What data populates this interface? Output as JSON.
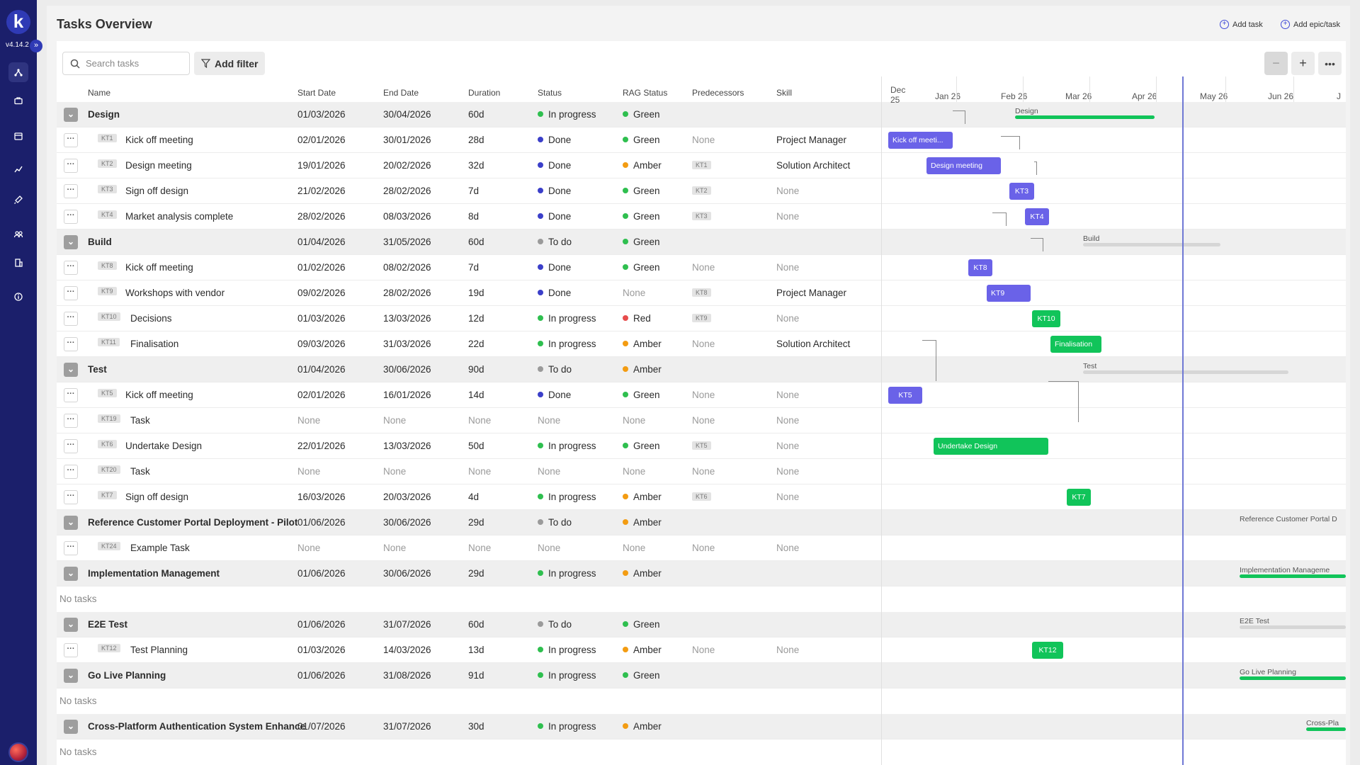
{
  "app": {
    "logo_letter": "k",
    "version": "v4.14.2",
    "expand_glyph": "»"
  },
  "page": {
    "title": "Tasks Overview",
    "add_task": "Add task",
    "add_epic": "Add epic/task",
    "search_placeholder": "Search tasks",
    "add_filter": "Add filter"
  },
  "columns": {
    "name": "Name",
    "start": "Start Date",
    "end": "End Date",
    "duration": "Duration",
    "status": "Status",
    "rag": "RAG Status",
    "pred": "Predecessors",
    "skill": "Skill"
  },
  "months": [
    {
      "label": "Dec 25",
      "x": 0
    },
    {
      "label": "Jan 26"
    },
    {
      "label": "Feb 26"
    },
    {
      "label": "Mar 26"
    },
    {
      "label": "Apr 26"
    },
    {
      "label": "May 26"
    },
    {
      "label": "Jun 26"
    },
    {
      "label": "J"
    }
  ],
  "rows": [
    {
      "type": "group",
      "name": "Design",
      "start": "01/03/2026",
      "end": "30/04/2026",
      "dur": "60d",
      "status": "In progress",
      "rag": "Green"
    },
    {
      "type": "task",
      "id": "KT1",
      "name": "Kick off meeting",
      "start": "02/01/2026",
      "end": "30/01/2026",
      "dur": "28d",
      "status": "Done",
      "rag": "Green",
      "pred": "None",
      "skill": "Project Manager"
    },
    {
      "type": "task",
      "id": "KT2",
      "name": "Design meeting",
      "start": "19/01/2026",
      "end": "20/02/2026",
      "dur": "32d",
      "status": "Done",
      "rag": "Amber",
      "pred": "KT1",
      "skill": "Solution Architect"
    },
    {
      "type": "task",
      "id": "KT3",
      "name": "Sign off design",
      "start": "21/02/2026",
      "end": "28/02/2026",
      "dur": "7d",
      "status": "Done",
      "rag": "Green",
      "pred": "KT2",
      "skill": "None"
    },
    {
      "type": "task",
      "id": "KT4",
      "name": "Market analysis complete",
      "start": "28/02/2026",
      "end": "08/03/2026",
      "dur": "8d",
      "status": "Done",
      "rag": "Green",
      "pred": "KT3",
      "skill": "None"
    },
    {
      "type": "group",
      "name": "Build",
      "start": "01/04/2026",
      "end": "31/05/2026",
      "dur": "60d",
      "status": "To do",
      "rag": "Green"
    },
    {
      "type": "task",
      "id": "KT8",
      "name": "Kick off meeting",
      "start": "01/02/2026",
      "end": "08/02/2026",
      "dur": "7d",
      "status": "Done",
      "rag": "Green",
      "pred": "None",
      "skill": "None"
    },
    {
      "type": "task",
      "id": "KT9",
      "name": "Workshops with vendor",
      "start": "09/02/2026",
      "end": "28/02/2026",
      "dur": "19d",
      "status": "Done",
      "rag": "None",
      "pred": "KT8",
      "skill": "Project Manager"
    },
    {
      "type": "task",
      "id": "KT10",
      "name": "Decisions",
      "start": "01/03/2026",
      "end": "13/03/2026",
      "dur": "12d",
      "status": "In progress",
      "rag": "Red",
      "pred": "KT9",
      "skill": "None"
    },
    {
      "type": "task",
      "id": "KT11",
      "name": "Finalisation",
      "start": "09/03/2026",
      "end": "31/03/2026",
      "dur": "22d",
      "status": "In progress",
      "rag": "Amber",
      "pred": "None",
      "skill": "Solution Architect"
    },
    {
      "type": "group",
      "name": "Test",
      "start": "01/04/2026",
      "end": "30/06/2026",
      "dur": "90d",
      "status": "To do",
      "rag": "Amber"
    },
    {
      "type": "task",
      "id": "KT5",
      "name": "Kick off meeting",
      "start": "02/01/2026",
      "end": "16/01/2026",
      "dur": "14d",
      "status": "Done",
      "rag": "Green",
      "pred": "None",
      "skill": "None"
    },
    {
      "type": "task",
      "id": "KT19",
      "name": "Task",
      "start": "None",
      "end": "None",
      "dur": "None",
      "status": "None",
      "rag": "None",
      "pred": "None",
      "skill": "None"
    },
    {
      "type": "task",
      "id": "KT6",
      "name": "Undertake Design",
      "start": "22/01/2026",
      "end": "13/03/2026",
      "dur": "50d",
      "status": "In progress",
      "rag": "Green",
      "pred": "KT5",
      "skill": "None"
    },
    {
      "type": "task",
      "id": "KT20",
      "name": "Task",
      "start": "None",
      "end": "None",
      "dur": "None",
      "status": "None",
      "rag": "None",
      "pred": "None",
      "skill": "None"
    },
    {
      "type": "task",
      "id": "KT7",
      "name": "Sign off design",
      "start": "16/03/2026",
      "end": "20/03/2026",
      "dur": "4d",
      "status": "In progress",
      "rag": "Amber",
      "pred": "KT6",
      "skill": "None"
    },
    {
      "type": "group",
      "name": "Reference Customer Portal Deployment - Pilot",
      "start": "01/06/2026",
      "end": "30/06/2026",
      "dur": "29d",
      "status": "To do",
      "rag": "Amber"
    },
    {
      "type": "task",
      "id": "KT24",
      "name": "Example Task",
      "start": "None",
      "end": "None",
      "dur": "None",
      "status": "None",
      "rag": "None",
      "pred": "None",
      "skill": "None"
    },
    {
      "type": "group",
      "name": "Implementation Management",
      "start": "01/06/2026",
      "end": "30/06/2026",
      "dur": "29d",
      "status": "In progress",
      "rag": "Amber"
    },
    {
      "type": "empty",
      "text": "No tasks"
    },
    {
      "type": "group",
      "name": "E2E Test",
      "start": "01/06/2026",
      "end": "31/07/2026",
      "dur": "60d",
      "status": "To do",
      "rag": "Green"
    },
    {
      "type": "task",
      "id": "KT12",
      "name": "Test Planning",
      "start": "01/03/2026",
      "end": "14/03/2026",
      "dur": "13d",
      "status": "In progress",
      "rag": "Amber",
      "pred": "None",
      "skill": "None"
    },
    {
      "type": "group",
      "name": "Go Live Planning",
      "start": "01/06/2026",
      "end": "31/08/2026",
      "dur": "91d",
      "status": "In progress",
      "rag": "Green"
    },
    {
      "type": "empty",
      "text": "No tasks"
    },
    {
      "type": "group",
      "name": "Cross-Platform Authentication System Enhance",
      "start": "01/07/2026",
      "end": "31/07/2026",
      "dur": "30d",
      "status": "In progress",
      "rag": "Amber"
    },
    {
      "type": "empty",
      "text": "No tasks"
    }
  ],
  "gantt_bars": [
    {
      "label": "Design",
      "kind": "group",
      "color": "#11c45a"
    },
    {
      "label": "Kick off meeti...",
      "kind": "done"
    },
    {
      "label": "Design meeting",
      "kind": "done"
    },
    {
      "label": "KT3",
      "kind": "done"
    },
    {
      "label": "KT4",
      "kind": "done"
    },
    {
      "label": "Build",
      "kind": "group",
      "color": "#d6d6d6"
    },
    {
      "label": "KT8",
      "kind": "done"
    },
    {
      "label": "KT9",
      "kind": "done"
    },
    {
      "label": "KT10",
      "kind": "prog"
    },
    {
      "label": "Finalisation",
      "kind": "prog"
    },
    {
      "label": "Test",
      "kind": "group",
      "color": "#d6d6d6"
    },
    {
      "label": "KT5",
      "kind": "done"
    },
    {
      "label": "Undertake Design",
      "kind": "prog"
    },
    {
      "label": "KT7",
      "kind": "prog"
    },
    {
      "label": "Reference Customer Portal D",
      "kind": "group",
      "color": ""
    },
    {
      "label": "Implementation Manageme",
      "kind": "group",
      "color": "#11c45a"
    },
    {
      "label": "E2E Test",
      "kind": "group",
      "color": "#d6d6d6"
    },
    {
      "label": "KT12",
      "kind": "prog"
    },
    {
      "label": "Go Live Planning",
      "kind": "group",
      "color": "#11c45a"
    },
    {
      "label": "Cross-Pla",
      "kind": "group",
      "color": "#11c45a"
    }
  ],
  "colors": {
    "Green": "#2fbf4f",
    "Amber": "#f39c12",
    "Red": "#e74c4c",
    "Done": "#3b3fc9",
    "In progress": "#2fbf4f",
    "To do": "#9a9a9a"
  },
  "icons": [
    "workflow-icon",
    "briefcase-icon",
    "calendar-icon",
    "chart-icon",
    "rocket-icon",
    "team-icon",
    "building-icon",
    "info-icon"
  ]
}
